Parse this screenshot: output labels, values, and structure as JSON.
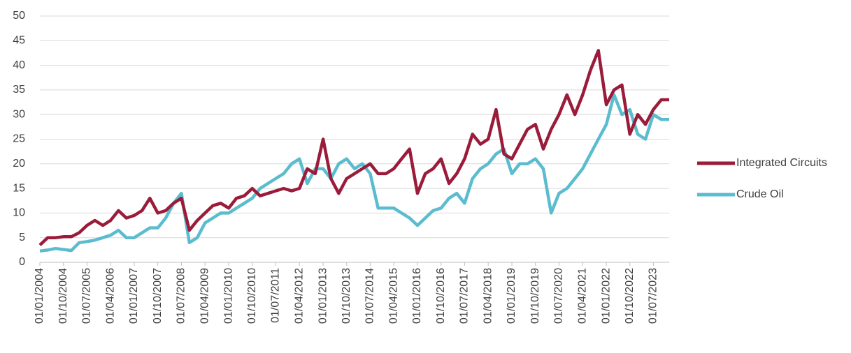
{
  "chart_data": {
    "type": "line",
    "x": [
      "2004-01-01",
      "2004-04-01",
      "2004-07-01",
      "2004-10-01",
      "2005-01-01",
      "2005-04-01",
      "2005-07-01",
      "2005-10-01",
      "2006-01-01",
      "2006-04-01",
      "2006-07-01",
      "2006-10-01",
      "2007-01-01",
      "2007-04-01",
      "2007-07-01",
      "2007-10-01",
      "2008-01-01",
      "2008-04-01",
      "2008-07-01",
      "2008-10-01",
      "2009-01-01",
      "2009-04-01",
      "2009-07-01",
      "2009-10-01",
      "2010-01-01",
      "2010-04-01",
      "2010-07-01",
      "2010-10-01",
      "2011-01-01",
      "2011-04-01",
      "2011-07-01",
      "2011-10-01",
      "2012-01-01",
      "2012-04-01",
      "2012-07-01",
      "2012-10-01",
      "2013-01-01",
      "2013-04-01",
      "2013-07-01",
      "2013-10-01",
      "2014-01-01",
      "2014-04-01",
      "2014-07-01",
      "2014-10-01",
      "2015-01-01",
      "2015-04-01",
      "2015-07-01",
      "2015-10-01",
      "2016-01-01",
      "2016-04-01",
      "2016-07-01",
      "2016-10-01",
      "2017-01-01",
      "2017-04-01",
      "2017-07-01",
      "2017-10-01",
      "2018-01-01",
      "2018-04-01",
      "2018-07-01",
      "2018-10-01",
      "2019-01-01",
      "2019-04-01",
      "2019-07-01",
      "2019-10-01",
      "2020-01-01",
      "2020-04-01",
      "2020-07-01",
      "2020-10-01",
      "2021-01-01",
      "2021-04-01",
      "2021-07-01",
      "2021-10-01",
      "2022-01-01",
      "2022-04-01",
      "2022-07-01",
      "2022-10-01",
      "2023-01-01",
      "2023-04-01",
      "2023-07-01",
      "2023-10-01",
      "2024-01-01"
    ],
    "series": [
      {
        "name": "Integrated Circuits",
        "color": "#9b1b3a",
        "values": [
          3.5,
          5,
          5,
          5.2,
          5.2,
          6,
          7.5,
          8.5,
          7.5,
          8.5,
          10.5,
          9,
          9.5,
          10.5,
          13,
          10,
          10.5,
          12,
          13,
          6.5,
          8.5,
          10,
          11.5,
          12,
          11,
          13,
          13.5,
          15,
          13.5,
          14,
          14.5,
          15,
          14.5,
          15,
          19,
          18,
          25,
          17,
          14,
          17,
          18,
          19,
          20,
          18,
          18,
          19,
          21,
          23,
          14,
          18,
          19,
          21,
          16,
          18,
          21,
          26,
          24,
          25,
          31,
          22,
          21,
          24,
          27,
          28,
          23,
          27,
          30,
          34,
          30,
          34,
          39,
          43,
          32,
          35,
          36,
          26,
          30,
          28,
          31,
          33,
          33
        ]
      },
      {
        "name": "Crude Oil",
        "color": "#5bbccf",
        "values": [
          2.3,
          2.5,
          2.8,
          2.6,
          2.4,
          4,
          4.2,
          4.5,
          5,
          5.5,
          6.5,
          5,
          5,
          6,
          7,
          7,
          9,
          12,
          14,
          4,
          5,
          8,
          9,
          10,
          10,
          11,
          12,
          13,
          15,
          16,
          17,
          18,
          20,
          21,
          16,
          19,
          19,
          17,
          20,
          21,
          19,
          20,
          18,
          11,
          11,
          11,
          10,
          9,
          7.5,
          9,
          10.5,
          11,
          13,
          14,
          12,
          17,
          19,
          20,
          22,
          23,
          18,
          20,
          20,
          21,
          19,
          10,
          14,
          15,
          17,
          19,
          22,
          25,
          28,
          34,
          30,
          31,
          26,
          25,
          30,
          29,
          29
        ]
      }
    ],
    "xlim": [
      "2004-01-01",
      "2024-01-01"
    ],
    "xticks": [
      {
        "value": "2004-01-01",
        "label": "01/01/2004"
      },
      {
        "value": "2004-10-01",
        "label": "01/10/2004"
      },
      {
        "value": "2005-07-01",
        "label": "01/07/2005"
      },
      {
        "value": "2006-04-01",
        "label": "01/04/2006"
      },
      {
        "value": "2007-01-01",
        "label": "01/01/2007"
      },
      {
        "value": "2007-10-01",
        "label": "01/10/2007"
      },
      {
        "value": "2008-07-01",
        "label": "01/07/2008"
      },
      {
        "value": "2009-04-01",
        "label": "01/04/2009"
      },
      {
        "value": "2010-01-01",
        "label": "01/01/2010"
      },
      {
        "value": "2010-10-01",
        "label": "01/10/2010"
      },
      {
        "value": "2011-07-01",
        "label": "01/07/2011"
      },
      {
        "value": "2012-04-01",
        "label": "01/04/2012"
      },
      {
        "value": "2013-01-01",
        "label": "01/01/2013"
      },
      {
        "value": "2013-10-01",
        "label": "01/10/2013"
      },
      {
        "value": "2014-07-01",
        "label": "01/07/2014"
      },
      {
        "value": "2015-04-01",
        "label": "01/04/2015"
      },
      {
        "value": "2016-01-01",
        "label": "01/01/2016"
      },
      {
        "value": "2016-10-01",
        "label": "01/10/2016"
      },
      {
        "value": "2017-07-01",
        "label": "01/07/2017"
      },
      {
        "value": "2018-04-01",
        "label": "01/04/2018"
      },
      {
        "value": "2019-01-01",
        "label": "01/01/2019"
      },
      {
        "value": "2019-10-01",
        "label": "01/10/2019"
      },
      {
        "value": "2020-07-01",
        "label": "01/07/2020"
      },
      {
        "value": "2021-04-01",
        "label": "01/04/2021"
      },
      {
        "value": "2022-01-01",
        "label": "01/01/2022"
      },
      {
        "value": "2022-10-01",
        "label": "01/10/2022"
      },
      {
        "value": "2023-07-01",
        "label": "01/07/2023"
      }
    ],
    "ylim": [
      0,
      50
    ],
    "yticks": [
      0,
      5,
      10,
      15,
      20,
      25,
      30,
      35,
      40,
      45,
      50
    ],
    "grid": true,
    "legend": "right"
  }
}
